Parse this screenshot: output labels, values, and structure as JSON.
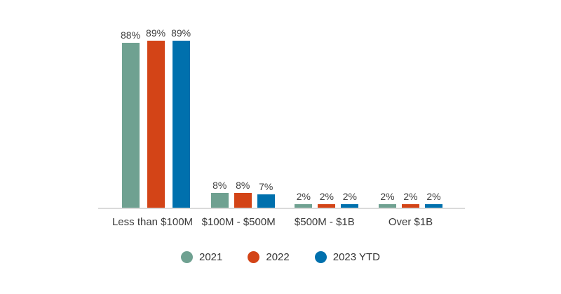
{
  "chart_data": {
    "type": "bar",
    "title": "",
    "xlabel": "",
    "ylabel": "",
    "categories": [
      "Less than $100M",
      "$100M - $500M",
      "$500M - $1B",
      "Over $1B"
    ],
    "series": [
      {
        "name": "2021",
        "color": "#6FA191",
        "values": [
          88,
          8,
          2,
          2
        ],
        "labels": [
          "88%",
          "8%",
          "2%",
          "2%"
        ]
      },
      {
        "name": "2022",
        "color": "#D34417",
        "values": [
          89,
          8,
          2,
          2
        ],
        "labels": [
          "89%",
          "8%",
          "2%",
          "2%"
        ]
      },
      {
        "name": "2023 YTD",
        "color": "#0070AD",
        "values": [
          89,
          7,
          2,
          2
        ],
        "labels": [
          "89%",
          "7%",
          "2%",
          "2%"
        ]
      }
    ],
    "ylim": [
      0,
      100
    ],
    "grid": false,
    "y_axis_visible": false,
    "legend_position": "bottom"
  },
  "colors": {
    "background": "#FFFFFF",
    "axis_line": "#DADADA",
    "value_label": "#404040",
    "category_label": "#3A3A3A",
    "legend_label": "#333333",
    "series_2021": "#6FA191",
    "series_2022": "#D34417",
    "series_2023_ytd": "#0070AD"
  }
}
